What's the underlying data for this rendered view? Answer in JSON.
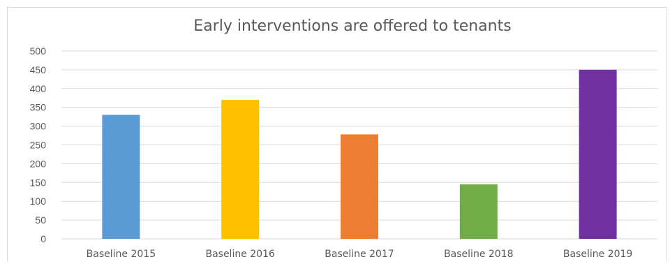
{
  "chart_data": {
    "type": "bar",
    "title": "Early interventions are offered to tenants",
    "xlabel": "",
    "ylabel": "",
    "categories": [
      "Baseline 2015",
      "Baseline 2016",
      "Baseline 2017",
      "Baseline 2018",
      "Baseline 2019"
    ],
    "values": [
      330,
      370,
      278,
      145,
      450
    ],
    "colors": [
      "#5b9bd5",
      "#ffc000",
      "#ed7d31",
      "#70ad47",
      "#7030a0"
    ],
    "ylim": [
      0,
      500
    ],
    "yticks": [
      "0",
      "50",
      "100",
      "150",
      "200",
      "250",
      "300",
      "350",
      "400",
      "450",
      "500"
    ],
    "grid": true,
    "legend": "none"
  }
}
